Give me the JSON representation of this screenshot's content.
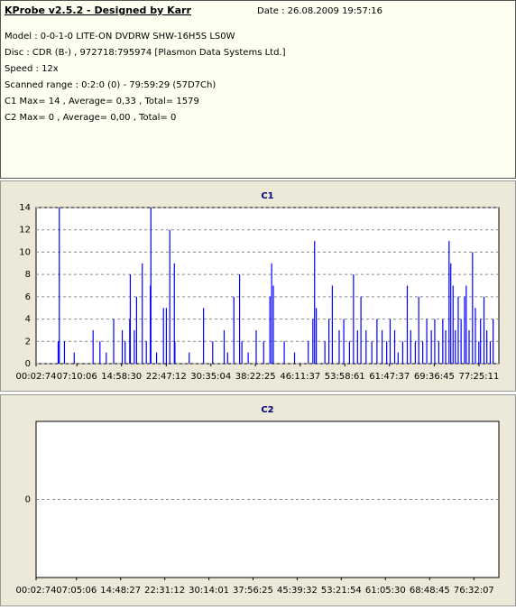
{
  "header": {
    "title": "KProbe v2.5.2 - Designed by Karr",
    "date": "Date : 26.08.2009 19:57:16",
    "lines": [
      "Model : 0-0-1-0 LITE-ON DVDRW SHW-16H5S  LS0W",
      "Disc : CDR (B-) , 972718:795974 [Plasmon Data Systems Ltd.]",
      "Speed : 12x",
      "Scanned range : 0:2:0 (0) - 79:59:29 (57D7Ch)",
      "C1 Max= 14 , Average= 0,33 , Total= 1579",
      "C2 Max= 0 , Average= 0,00 , Total= 0"
    ]
  },
  "chart_data": [
    {
      "type": "bar",
      "title": "C1",
      "color": "#0000ff",
      "grid": true,
      "x": [
        3.9,
        4.1,
        5.0,
        6.7,
        10.0,
        11.2,
        12.3,
        13.6,
        15.1,
        15.6,
        16.4,
        16.5,
        17.2,
        17.6,
        18.6,
        19.3,
        20.0,
        20.1,
        21.1,
        22.3,
        22.8,
        23.4,
        24.2,
        24.3,
        26.8,
        29.3,
        30.9,
        32.9,
        33.5,
        34.6,
        35.6,
        36.0,
        37.1,
        38.5,
        39.8,
        40.9,
        41.2,
        41.5,
        43.4,
        45.2,
        47.6,
        48.4,
        48.7,
        49.0,
        50.5,
        51.2,
        51.8,
        53.0,
        53.8,
        54.8,
        55.5,
        56.2,
        56.8,
        57.7,
        58.7,
        59.6,
        60.5,
        61.3,
        61.9,
        62.7,
        63.3,
        64.1,
        64.9,
        65.5,
        66.3,
        66.9,
        67.6,
        68.3,
        69.1,
        69.7,
        70.4,
        71.1,
        71.6,
        72.2,
        72.5,
        72.9,
        73.3,
        73.8,
        74.3,
        74.9,
        75.2,
        75.7,
        76.3,
        76.8,
        77.4,
        77.7,
        78.3,
        78.8,
        79.4,
        79.9
      ],
      "values": [
        2,
        14,
        2,
        1,
        3,
        2,
        1,
        4,
        3,
        2,
        4,
        8,
        3,
        6,
        9,
        2,
        7,
        14,
        1,
        5,
        5,
        12,
        9,
        2,
        1,
        5,
        2,
        3,
        1,
        6,
        8,
        2,
        1,
        3,
        2,
        6,
        9,
        7,
        2,
        1,
        2,
        4,
        11,
        5,
        2,
        4,
        7,
        3,
        4,
        2,
        8,
        3,
        6,
        3,
        2,
        4,
        3,
        2,
        4,
        3,
        1,
        2,
        7,
        3,
        2,
        6,
        2,
        4,
        3,
        4,
        2,
        4,
        3,
        11,
        9,
        7,
        3,
        6,
        4,
        6,
        7,
        3,
        10,
        5,
        2,
        4,
        6,
        3,
        2,
        4
      ],
      "xlim": [
        0.04,
        80.9
      ],
      "xticks": [
        {
          "value": 0.04,
          "label": "00:02:74"
        },
        {
          "value": 7.17,
          "label": "07:10:06"
        },
        {
          "value": 14.97,
          "label": "14:58:30"
        },
        {
          "value": 22.79,
          "label": "22:47:12"
        },
        {
          "value": 30.58,
          "label": "30:35:04"
        },
        {
          "value": 38.37,
          "label": "38:22:25"
        },
        {
          "value": 46.19,
          "label": "46:11:37"
        },
        {
          "value": 53.98,
          "label": "53:58:61"
        },
        {
          "value": 61.79,
          "label": "61:47:37"
        },
        {
          "value": 69.61,
          "label": "69:36:45"
        },
        {
          "value": 77.42,
          "label": "77:25:11"
        }
      ],
      "ylim": [
        0,
        14
      ],
      "yticks": [
        0,
        2,
        4,
        6,
        8,
        10,
        12,
        14
      ]
    },
    {
      "type": "bar",
      "title": "C2",
      "color": "#0000ff",
      "grid": true,
      "x": [],
      "values": [],
      "xlim": [
        0.04,
        80.9
      ],
      "xticks": [
        {
          "value": 0.04,
          "label": "00:02:74"
        },
        {
          "value": 7.09,
          "label": "07:05:06"
        },
        {
          "value": 14.81,
          "label": "14:48:27"
        },
        {
          "value": 22.52,
          "label": "22:31:12"
        },
        {
          "value": 30.24,
          "label": "30:14:01"
        },
        {
          "value": 37.94,
          "label": "37:56:25"
        },
        {
          "value": 45.66,
          "label": "45:39:32"
        },
        {
          "value": 53.37,
          "label": "53:21:54"
        },
        {
          "value": 61.09,
          "label": "61:05:30"
        },
        {
          "value": 68.81,
          "label": "68:48:45"
        },
        {
          "value": 76.54,
          "label": "76:32:07"
        }
      ],
      "ylim": [
        -1,
        1
      ],
      "yticks": [
        0
      ]
    }
  ]
}
